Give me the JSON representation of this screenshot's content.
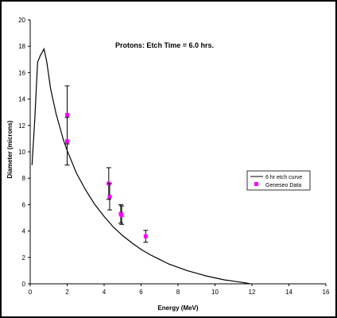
{
  "chart_data": {
    "type": "scatter",
    "title": "Protons: Etch Time = 6.0 hrs.",
    "xlabel": "Energy (MeV)",
    "ylabel": "Diameter (microns)",
    "xlim": [
      0,
      16
    ],
    "ylim": [
      0,
      20
    ],
    "xticks": [
      0,
      2,
      4,
      6,
      8,
      10,
      12,
      14,
      16
    ],
    "yticks": [
      0,
      2,
      4,
      6,
      8,
      10,
      12,
      14,
      16,
      18,
      20
    ],
    "grid": false,
    "legend_placement": "right",
    "series": [
      {
        "name": "6 hr etch curve",
        "kind": "line",
        "color": "#000000",
        "x": [
          0.1,
          0.25,
          0.4,
          0.55,
          0.75,
          0.9,
          1.1,
          1.4,
          1.8,
          2.0,
          2.5,
          3.0,
          3.5,
          4.0,
          4.5,
          5.0,
          5.5,
          6.0,
          6.5,
          7.0,
          7.5,
          8.0,
          8.5,
          9.0,
          9.5,
          10.0,
          10.5,
          11.0,
          11.5,
          11.8,
          11.9
        ],
        "y": [
          9.0,
          12.5,
          16.8,
          17.3,
          17.8,
          16.8,
          14.8,
          12.9,
          10.9,
          10.1,
          8.4,
          7.1,
          6.0,
          5.1,
          4.3,
          3.65,
          3.1,
          2.6,
          2.2,
          1.85,
          1.5,
          1.25,
          1.0,
          0.8,
          0.6,
          0.45,
          0.3,
          0.2,
          0.1,
          0.03,
          0.0
        ]
      },
      {
        "name": "Geneseo Data",
        "kind": "points",
        "color": "#ff00ff",
        "x": [
          2.0,
          2.0,
          4.25,
          4.3,
          4.9,
          4.95,
          6.25
        ],
        "y": [
          12.8,
          10.8,
          7.6,
          6.6,
          5.3,
          5.2,
          3.6
        ],
        "yerr": [
          2.2,
          1.8,
          1.2,
          1.0,
          0.7,
          0.7,
          0.45
        ]
      }
    ]
  }
}
